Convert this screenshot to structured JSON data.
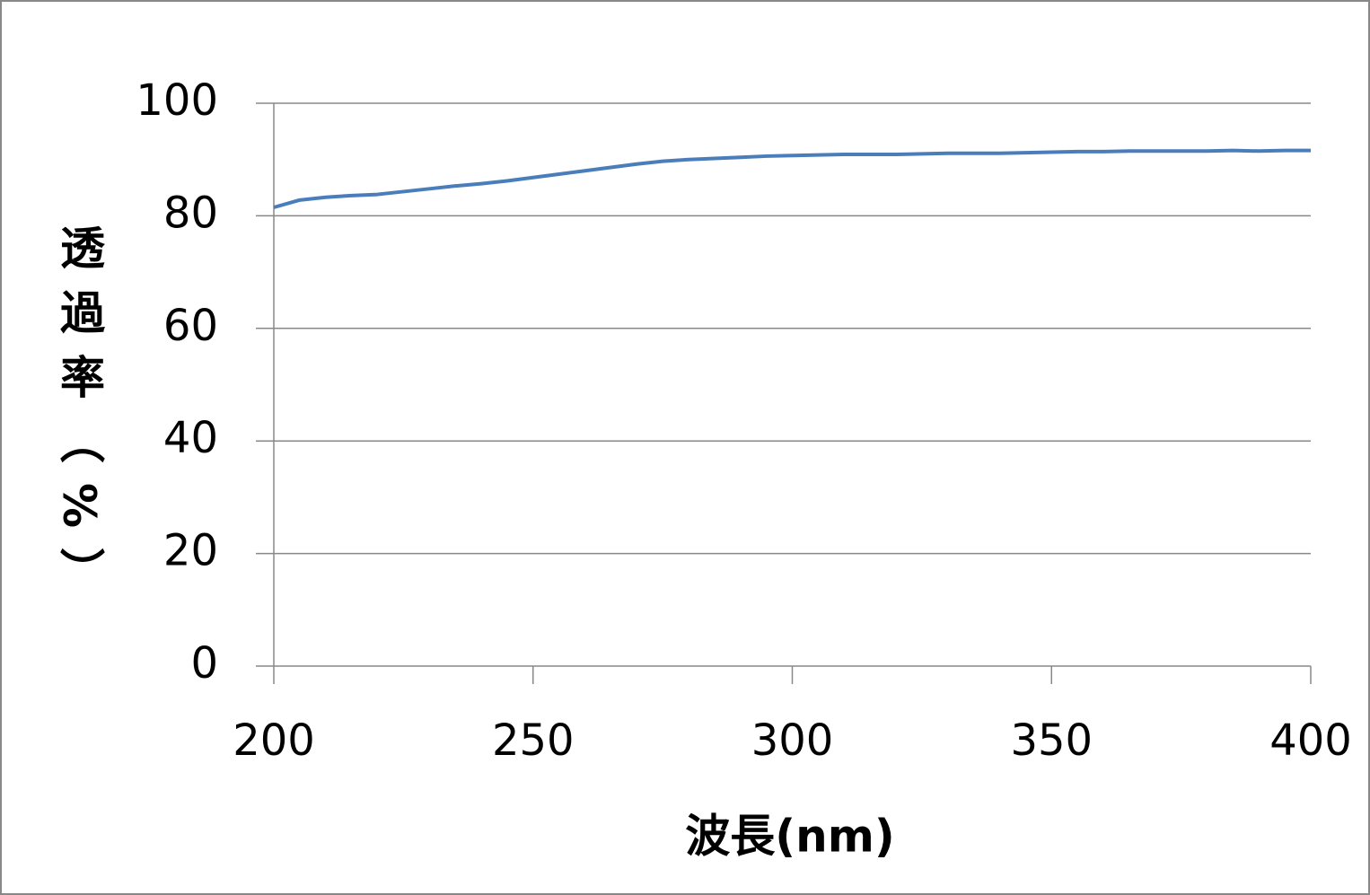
{
  "chart_data": {
    "type": "line",
    "xlabel": "波長(nm)",
    "ylabel": "透過率（%）",
    "x": [
      200,
      205,
      210,
      215,
      220,
      225,
      230,
      235,
      240,
      245,
      250,
      255,
      260,
      265,
      270,
      275,
      280,
      285,
      290,
      295,
      300,
      305,
      310,
      315,
      320,
      325,
      330,
      335,
      340,
      345,
      350,
      355,
      360,
      365,
      370,
      375,
      380,
      385,
      390,
      395,
      400
    ],
    "series": [
      {
        "color": "#4a7ebb",
        "values": [
          81.5,
          82.8,
          83.3,
          83.6,
          83.8,
          84.3,
          84.8,
          85.3,
          85.7,
          86.2,
          86.8,
          87.4,
          88.0,
          88.6,
          89.2,
          89.7,
          90.0,
          90.2,
          90.4,
          90.6,
          90.7,
          90.8,
          90.9,
          90.9,
          90.9,
          91.0,
          91.1,
          91.1,
          91.1,
          91.2,
          91.3,
          91.4,
          91.4,
          91.5,
          91.5,
          91.5,
          91.5,
          91.6,
          91.5,
          91.6,
          91.6
        ]
      }
    ],
    "xlim": [
      200,
      400
    ],
    "xticks": [
      200,
      250,
      300,
      350,
      400
    ],
    "ylim": [
      0,
      100
    ],
    "yticks": [
      0,
      20,
      40,
      60,
      80,
      100
    ],
    "grid": true
  }
}
